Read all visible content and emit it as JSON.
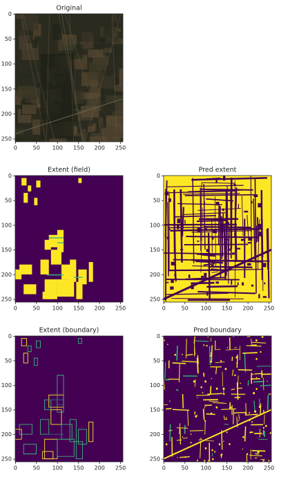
{
  "chart_data": [
    {
      "type": "image",
      "title": "Original",
      "xlim": [
        -0.5,
        255.5
      ],
      "ylim": [
        255.5,
        -0.5
      ],
      "xticks": [
        0,
        50,
        100,
        150,
        200,
        250
      ],
      "yticks": [
        0,
        50,
        100,
        150,
        200,
        250
      ]
    },
    {
      "type": "image",
      "title": "Extent (field)",
      "xlim": [
        -0.5,
        255.5
      ],
      "ylim": [
        255.5,
        -0.5
      ],
      "xticks": [
        0,
        50,
        100,
        150,
        200,
        250
      ],
      "yticks": [
        0,
        50,
        100,
        150,
        200,
        250
      ]
    },
    {
      "type": "image",
      "title": "Pred extent",
      "xlim": [
        -0.5,
        255.5
      ],
      "ylim": [
        255.5,
        -0.5
      ],
      "xticks": [
        0,
        50,
        100,
        150,
        200,
        250
      ],
      "yticks": [
        0,
        50,
        100,
        150,
        200,
        250
      ]
    },
    {
      "type": "image",
      "title": "Extent (boundary)",
      "xlim": [
        -0.5,
        255.5
      ],
      "ylim": [
        255.5,
        -0.5
      ],
      "xticks": [
        0,
        50,
        100,
        150,
        200,
        250
      ],
      "yticks": [
        0,
        50,
        100,
        150,
        200,
        250
      ]
    },
    {
      "type": "image",
      "title": "Pred boundary",
      "xlim": [
        -0.5,
        255.5
      ],
      "ylim": [
        255.5,
        -0.5
      ],
      "xticks": [
        0,
        50,
        100,
        150,
        200,
        250
      ],
      "yticks": [
        0,
        50,
        100,
        150,
        200,
        250
      ]
    }
  ]
}
